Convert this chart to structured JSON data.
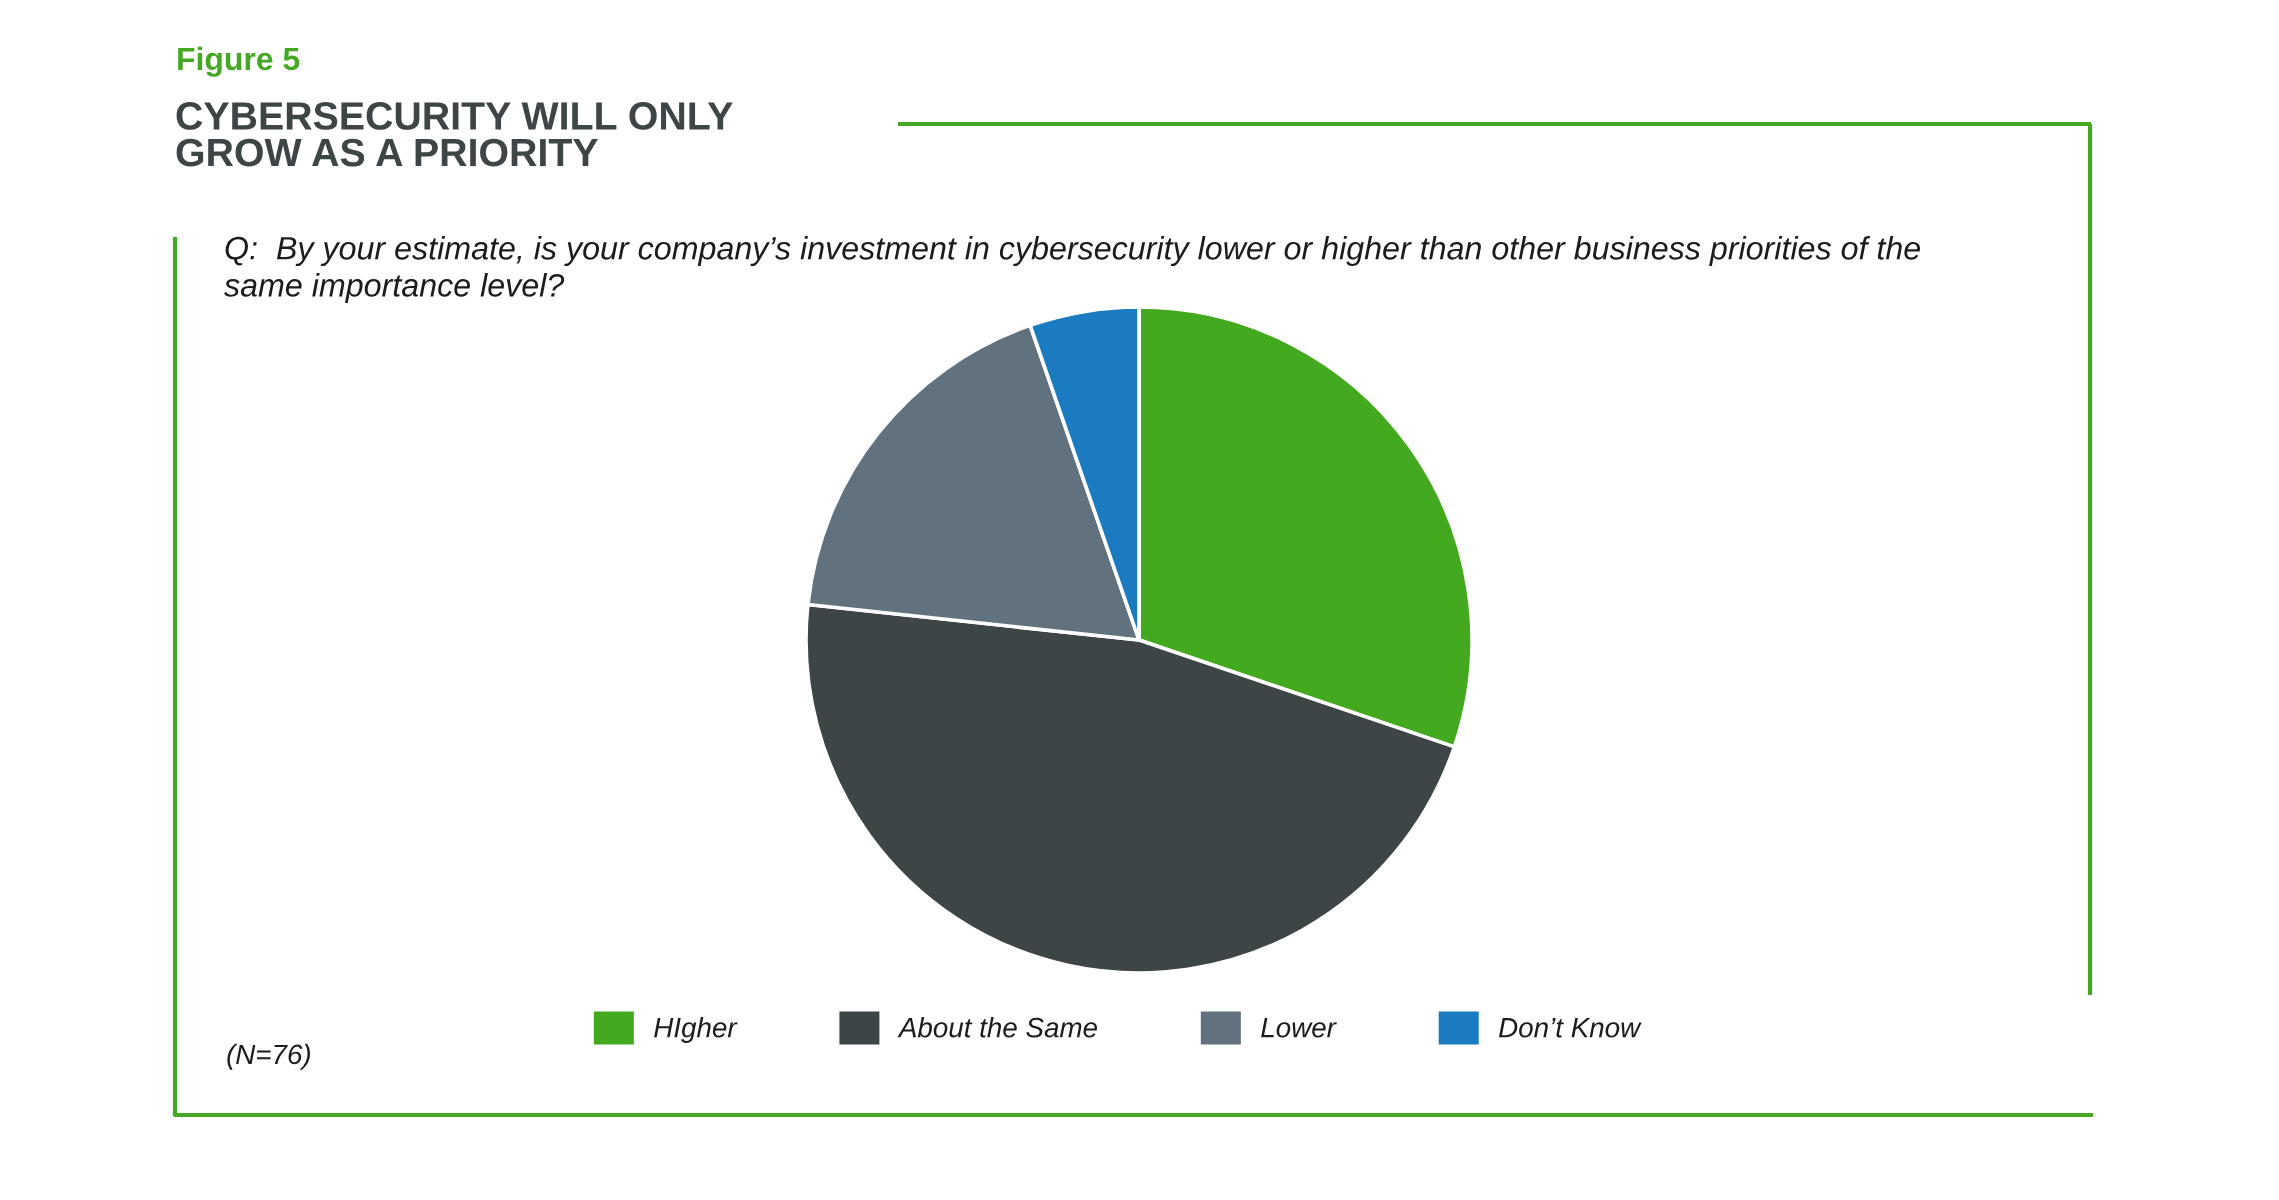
{
  "chart_data": {
    "type": "pie",
    "title": "CYBERSECURITY WILL ONLY GROW AS A PRIORITY",
    "subtitle": "Q:  By your estimate, is your company’s investment in cybersecurity lower or higher than other business priorities of the same importance level?",
    "categories": [
      "HIgher",
      "About the Same",
      "Lower",
      "Don’t Know"
    ],
    "values": [
      30.2,
      46.5,
      18.0,
      5.3
    ],
    "colors": [
      "#43a91f",
      "#3d4547",
      "#61727e",
      "#1a7bc0"
    ],
    "legend": "bottom",
    "annotations": [
      "Figure 5",
      "(N=76)"
    ]
  }
}
